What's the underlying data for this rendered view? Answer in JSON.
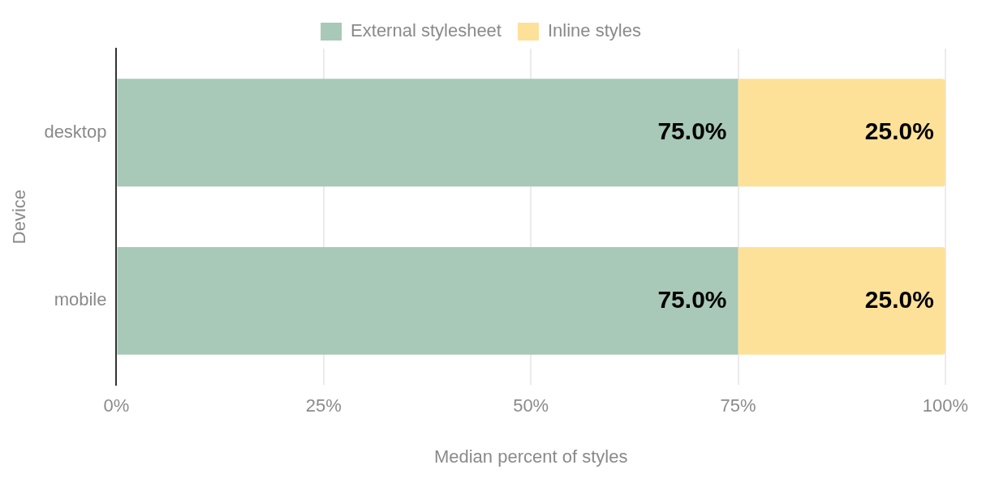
{
  "chart_data": {
    "type": "bar",
    "orientation": "horizontal",
    "stacked": true,
    "categories": [
      "desktop",
      "mobile"
    ],
    "series": [
      {
        "name": "External stylesheet",
        "color": "#a8c8b8",
        "values": [
          75,
          75
        ],
        "value_labels": [
          "75.0%",
          "75.0%"
        ]
      },
      {
        "name": "Inline styles",
        "color": "#fde199",
        "values": [
          25,
          25
        ],
        "value_labels": [
          "25.0%",
          "25.0%"
        ]
      }
    ],
    "xlim": [
      0,
      100
    ],
    "xticks": [
      {
        "value": 0,
        "label": "0%"
      },
      {
        "value": 25,
        "label": "25%"
      },
      {
        "value": 50,
        "label": "50%"
      },
      {
        "value": 75,
        "label": "75%"
      },
      {
        "value": 100,
        "label": "100%"
      }
    ],
    "xlabel": "Median percent of styles",
    "ylabel": "Device",
    "grid": "x",
    "legend": "top"
  }
}
